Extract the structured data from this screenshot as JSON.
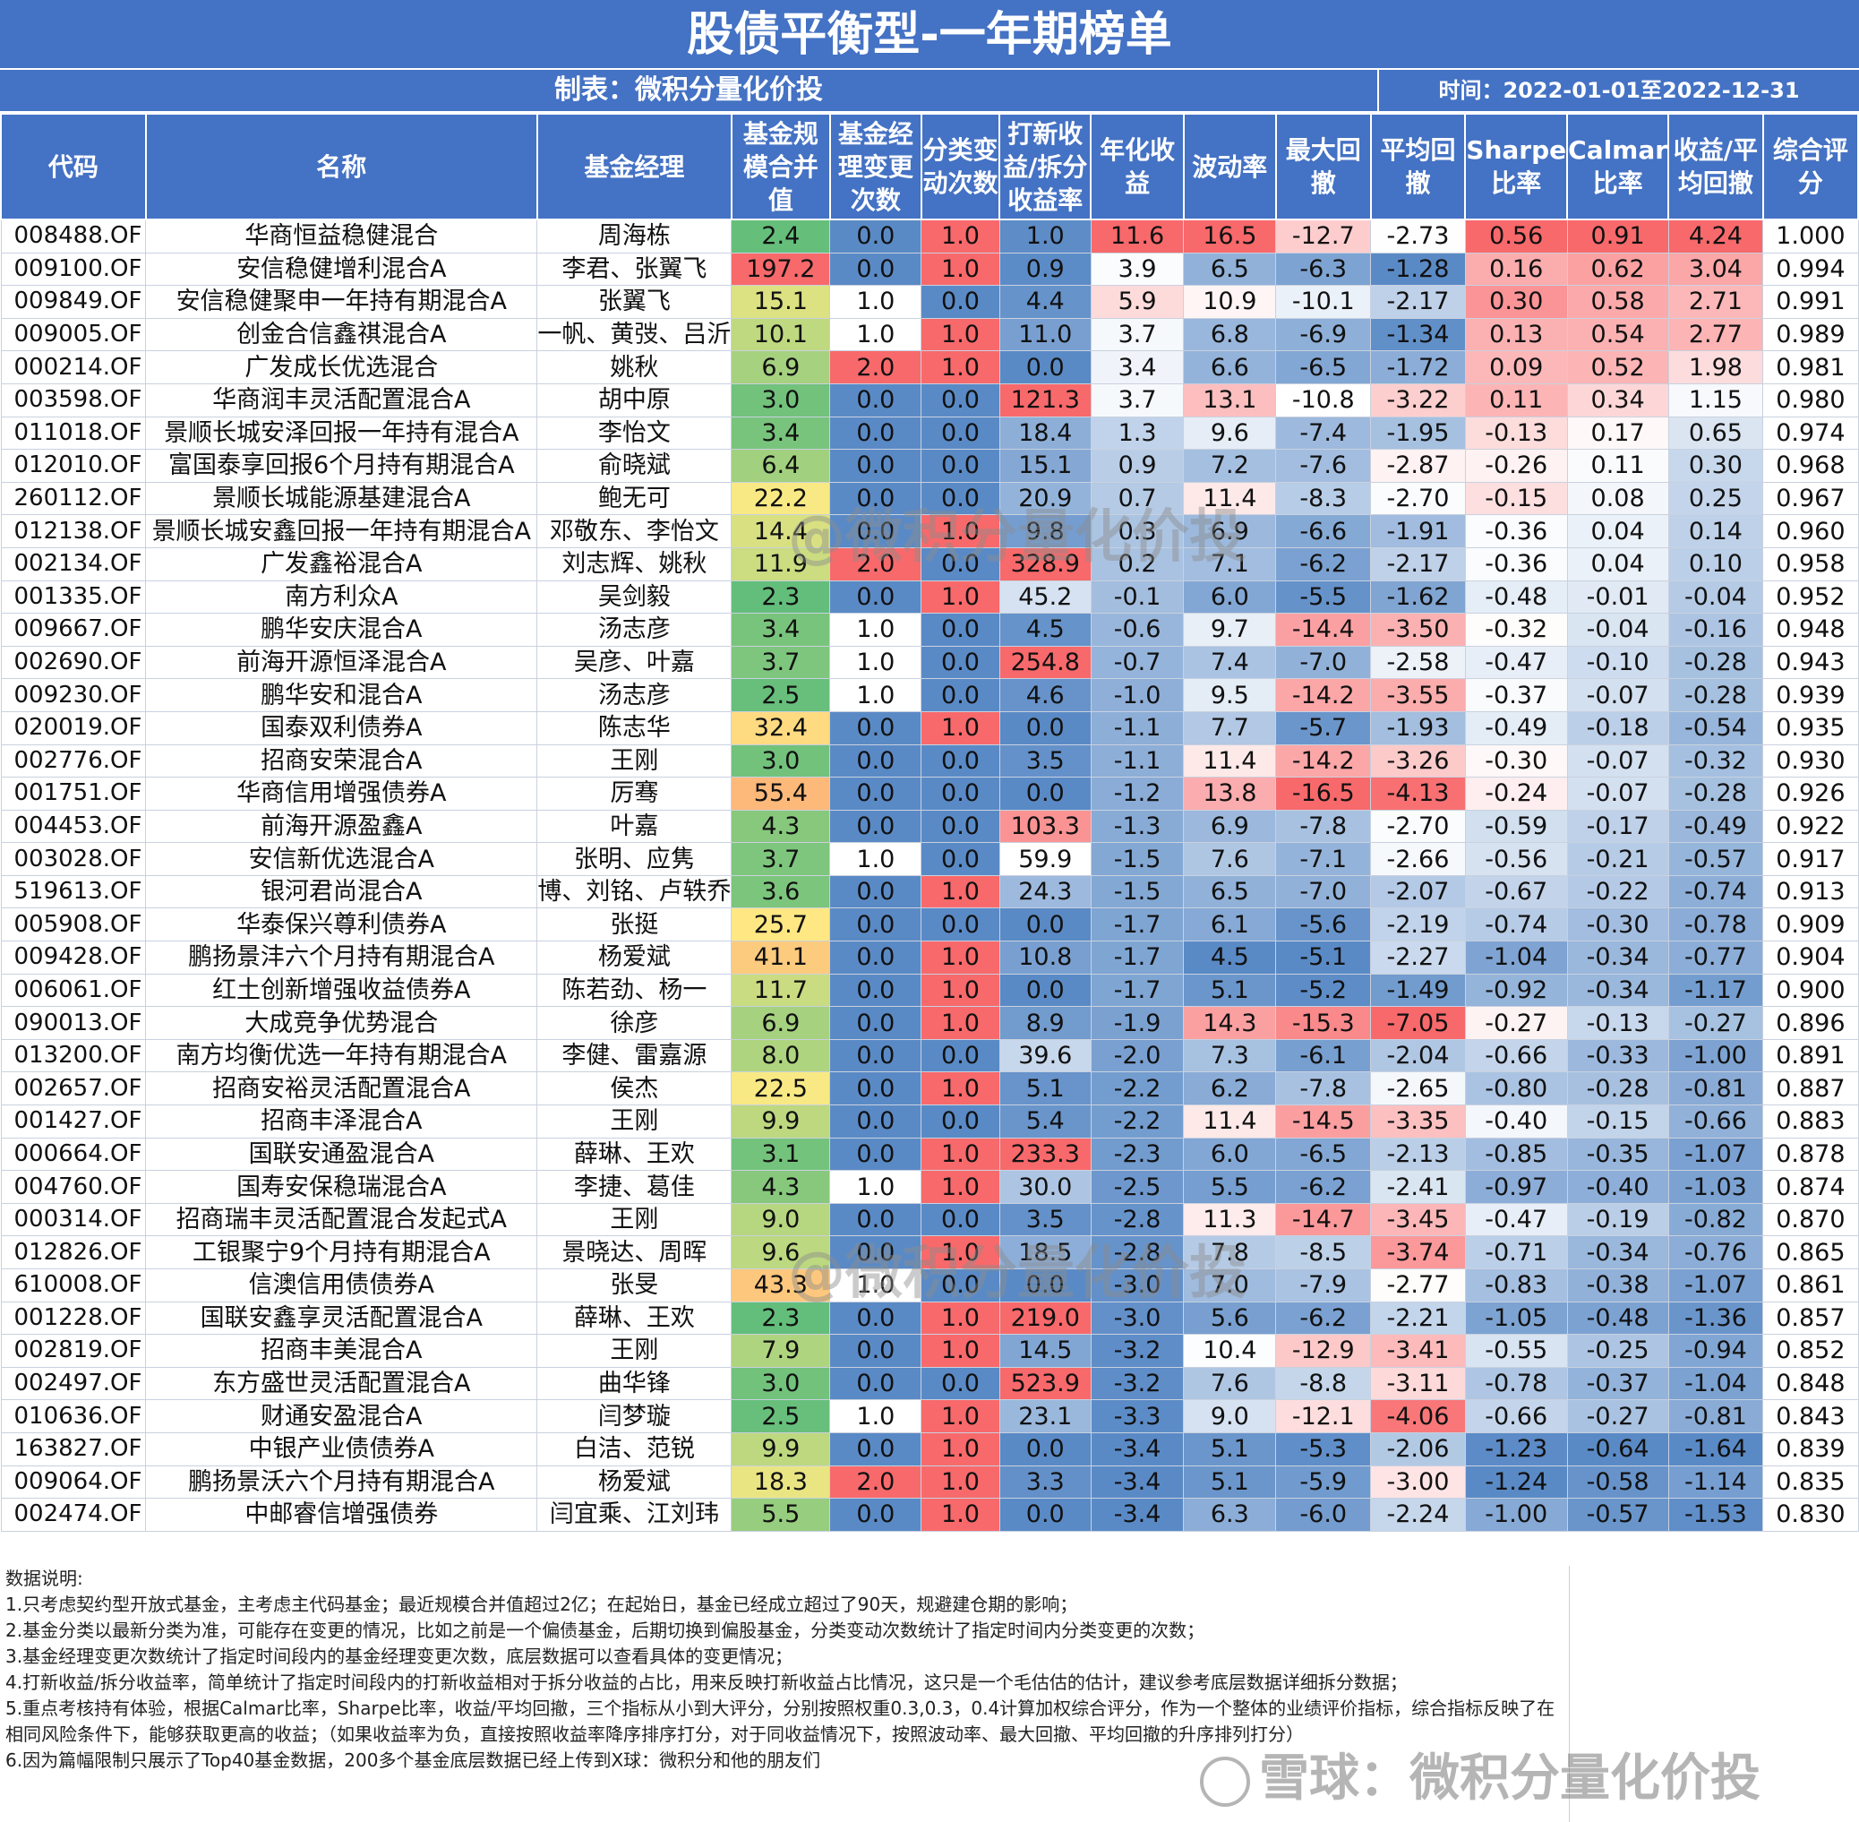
{
  "title": "股债平衡型-一年期榜单",
  "maker": "制表：微积分量化价投",
  "period": "时间：2022-01-01至2022-12-31",
  "columns": [
    "代码",
    "名称",
    "基金经理",
    "基金规模合并值",
    "基金经理变更次数",
    "分类变动次数",
    "打新收益/拆分收益率",
    "年化收益",
    "波动率",
    "最大回撤",
    "平均回撤",
    "Sharpe比率",
    "Calmar比率",
    "收益/平均回撤",
    "综合评分"
  ],
  "rows": [
    [
      "008488.OF",
      "华商恒益稳健混合",
      "周海栋",
      "2.4",
      "0.0",
      "1.0",
      "1.0",
      "11.6",
      "16.5",
      "-12.7",
      "-2.73",
      "0.56",
      "0.91",
      "4.24",
      "1.000"
    ],
    [
      "009100.OF",
      "安信稳健增利混合A",
      "李君、张翼飞",
      "197.2",
      "0.0",
      "1.0",
      "0.9",
      "3.9",
      "6.5",
      "-6.3",
      "-1.28",
      "0.16",
      "0.62",
      "3.04",
      "0.994"
    ],
    [
      "009849.OF",
      "安信稳健聚申一年持有期混合A",
      "张翼飞",
      "15.1",
      "1.0",
      "0.0",
      "4.4",
      "5.9",
      "10.9",
      "-10.1",
      "-2.17",
      "0.30",
      "0.58",
      "2.71",
      "0.991"
    ],
    [
      "009005.OF",
      "创金合信鑫祺混合A",
      "一帆、黄弢、吕沂",
      "10.1",
      "1.0",
      "1.0",
      "11.0",
      "3.7",
      "6.8",
      "-6.9",
      "-1.34",
      "0.13",
      "0.54",
      "2.77",
      "0.989"
    ],
    [
      "000214.OF",
      "广发成长优选混合",
      "姚秋",
      "6.9",
      "2.0",
      "1.0",
      "0.0",
      "3.4",
      "6.6",
      "-6.5",
      "-1.72",
      "0.09",
      "0.52",
      "1.98",
      "0.981"
    ],
    [
      "003598.OF",
      "华商润丰灵活配置混合A",
      "胡中原",
      "3.0",
      "0.0",
      "0.0",
      "121.3",
      "3.7",
      "13.1",
      "-10.8",
      "-3.22",
      "0.11",
      "0.34",
      "1.15",
      "0.980"
    ],
    [
      "011018.OF",
      "景顺长城安泽回报一年持有混合A",
      "李怡文",
      "3.4",
      "0.0",
      "0.0",
      "18.4",
      "1.3",
      "9.6",
      "-7.4",
      "-1.95",
      "-0.13",
      "0.17",
      "0.65",
      "0.974"
    ],
    [
      "012010.OF",
      "富国泰享回报6个月持有期混合A",
      "俞晓斌",
      "6.4",
      "0.0",
      "0.0",
      "15.1",
      "0.9",
      "7.2",
      "-7.6",
      "-2.87",
      "-0.26",
      "0.11",
      "0.30",
      "0.968"
    ],
    [
      "260112.OF",
      "景顺长城能源基建混合A",
      "鲍无可",
      "22.2",
      "0.0",
      "0.0",
      "20.9",
      "0.7",
      "11.4",
      "-8.3",
      "-2.70",
      "-0.15",
      "0.08",
      "0.25",
      "0.967"
    ],
    [
      "012138.OF",
      "景顺长城安鑫回报一年持有期混合A",
      "邓敬东、李怡文",
      "14.4",
      "0.0",
      "1.0",
      "9.8",
      "0.3",
      "6.9",
      "-6.6",
      "-1.91",
      "-0.36",
      "0.04",
      "0.14",
      "0.960"
    ],
    [
      "002134.OF",
      "广发鑫裕混合A",
      "刘志辉、姚秋",
      "11.9",
      "2.0",
      "0.0",
      "328.9",
      "0.2",
      "7.1",
      "-6.2",
      "-2.17",
      "-0.36",
      "0.04",
      "0.10",
      "0.958"
    ],
    [
      "001335.OF",
      "南方利众A",
      "吴剑毅",
      "2.3",
      "0.0",
      "1.0",
      "45.2",
      "-0.1",
      "6.0",
      "-5.5",
      "-1.62",
      "-0.48",
      "-0.01",
      "-0.04",
      "0.952"
    ],
    [
      "009667.OF",
      "鹏华安庆混合A",
      "汤志彦",
      "3.4",
      "1.0",
      "0.0",
      "4.5",
      "-0.6",
      "9.7",
      "-14.4",
      "-3.50",
      "-0.32",
      "-0.04",
      "-0.16",
      "0.948"
    ],
    [
      "002690.OF",
      "前海开源恒泽混合A",
      "吴彦、叶嘉",
      "3.7",
      "1.0",
      "0.0",
      "254.8",
      "-0.7",
      "7.4",
      "-7.0",
      "-2.58",
      "-0.47",
      "-0.10",
      "-0.28",
      "0.943"
    ],
    [
      "009230.OF",
      "鹏华安和混合A",
      "汤志彦",
      "2.5",
      "1.0",
      "0.0",
      "4.6",
      "-1.0",
      "9.5",
      "-14.2",
      "-3.55",
      "-0.37",
      "-0.07",
      "-0.28",
      "0.939"
    ],
    [
      "020019.OF",
      "国泰双利债券A",
      "陈志华",
      "32.4",
      "0.0",
      "1.0",
      "0.0",
      "-1.1",
      "7.7",
      "-5.7",
      "-1.93",
      "-0.49",
      "-0.18",
      "-0.54",
      "0.935"
    ],
    [
      "002776.OF",
      "招商安荣混合A",
      "王刚",
      "3.0",
      "0.0",
      "0.0",
      "3.5",
      "-1.1",
      "11.4",
      "-14.2",
      "-3.26",
      "-0.30",
      "-0.07",
      "-0.32",
      "0.930"
    ],
    [
      "001751.OF",
      "华商信用增强债券A",
      "厉骞",
      "55.4",
      "0.0",
      "0.0",
      "0.0",
      "-1.2",
      "13.8",
      "-16.5",
      "-4.13",
      "-0.24",
      "-0.07",
      "-0.28",
      "0.926"
    ],
    [
      "004453.OF",
      "前海开源盈鑫A",
      "叶嘉",
      "4.3",
      "0.0",
      "0.0",
      "103.3",
      "-1.3",
      "6.9",
      "-7.8",
      "-2.70",
      "-0.59",
      "-0.17",
      "-0.49",
      "0.922"
    ],
    [
      "003028.OF",
      "安信新优选混合A",
      "张明、应隽",
      "3.7",
      "1.0",
      "0.0",
      "59.9",
      "-1.5",
      "7.6",
      "-7.1",
      "-2.66",
      "-0.56",
      "-0.21",
      "-0.57",
      "0.917"
    ],
    [
      "519613.OF",
      "银河君尚混合A",
      "博、刘铭、卢轶乔",
      "3.6",
      "0.0",
      "1.0",
      "24.3",
      "-1.5",
      "6.5",
      "-7.0",
      "-2.07",
      "-0.67",
      "-0.22",
      "-0.74",
      "0.913"
    ],
    [
      "005908.OF",
      "华泰保兴尊利债券A",
      "张挺",
      "25.7",
      "0.0",
      "0.0",
      "0.0",
      "-1.7",
      "6.1",
      "-5.6",
      "-2.19",
      "-0.74",
      "-0.30",
      "-0.78",
      "0.909"
    ],
    [
      "009428.OF",
      "鹏扬景沣六个月持有期混合A",
      "杨爱斌",
      "41.1",
      "0.0",
      "1.0",
      "10.8",
      "-1.7",
      "4.5",
      "-5.1",
      "-2.27",
      "-1.04",
      "-0.34",
      "-0.77",
      "0.904"
    ],
    [
      "006061.OF",
      "红土创新增强收益债券A",
      "陈若劲、杨一",
      "11.7",
      "0.0",
      "1.0",
      "0.0",
      "-1.7",
      "5.1",
      "-5.2",
      "-1.49",
      "-0.92",
      "-0.34",
      "-1.17",
      "0.900"
    ],
    [
      "090013.OF",
      "大成竞争优势混合",
      "徐彦",
      "6.9",
      "0.0",
      "1.0",
      "8.9",
      "-1.9",
      "14.3",
      "-15.3",
      "-7.05",
      "-0.27",
      "-0.13",
      "-0.27",
      "0.896"
    ],
    [
      "013200.OF",
      "南方均衡优选一年持有期混合A",
      "李健、雷嘉源",
      "8.0",
      "0.0",
      "0.0",
      "39.6",
      "-2.0",
      "7.3",
      "-6.1",
      "-2.04",
      "-0.66",
      "-0.33",
      "-1.00",
      "0.891"
    ],
    [
      "002657.OF",
      "招商安裕灵活配置混合A",
      "侯杰",
      "22.5",
      "0.0",
      "1.0",
      "5.1",
      "-2.2",
      "6.2",
      "-7.8",
      "-2.65",
      "-0.80",
      "-0.28",
      "-0.81",
      "0.887"
    ],
    [
      "001427.OF",
      "招商丰泽混合A",
      "王刚",
      "9.9",
      "0.0",
      "0.0",
      "5.4",
      "-2.2",
      "11.4",
      "-14.5",
      "-3.35",
      "-0.40",
      "-0.15",
      "-0.66",
      "0.883"
    ],
    [
      "000664.OF",
      "国联安通盈混合A",
      "薛琳、王欢",
      "3.1",
      "0.0",
      "1.0",
      "233.3",
      "-2.3",
      "6.0",
      "-6.5",
      "-2.13",
      "-0.85",
      "-0.35",
      "-1.07",
      "0.878"
    ],
    [
      "004760.OF",
      "国寿安保稳瑞混合A",
      "李捷、葛佳",
      "4.3",
      "1.0",
      "1.0",
      "30.0",
      "-2.5",
      "5.5",
      "-6.2",
      "-2.41",
      "-0.97",
      "-0.40",
      "-1.03",
      "0.874"
    ],
    [
      "000314.OF",
      "招商瑞丰灵活配置混合发起式A",
      "王刚",
      "9.0",
      "0.0",
      "0.0",
      "3.5",
      "-2.8",
      "11.3",
      "-14.7",
      "-3.45",
      "-0.47",
      "-0.19",
      "-0.82",
      "0.870"
    ],
    [
      "012826.OF",
      "工银聚宁9个月持有期混合A",
      "景晓达、周晖",
      "9.6",
      "0.0",
      "1.0",
      "18.5",
      "-2.8",
      "7.8",
      "-8.5",
      "-3.74",
      "-0.71",
      "-0.34",
      "-0.76",
      "0.865"
    ],
    [
      "610008.OF",
      "信澳信用债债券A",
      "张旻",
      "43.3",
      "1.0",
      "0.0",
      "0.0",
      "-3.0",
      "7.0",
      "-7.9",
      "-2.77",
      "-0.83",
      "-0.38",
      "-1.07",
      "0.861"
    ],
    [
      "001228.OF",
      "国联安鑫享灵活配置混合A",
      "薛琳、王欢",
      "2.3",
      "0.0",
      "1.0",
      "219.0",
      "-3.0",
      "5.6",
      "-6.2",
      "-2.21",
      "-1.05",
      "-0.48",
      "-1.36",
      "0.857"
    ],
    [
      "002819.OF",
      "招商丰美混合A",
      "王刚",
      "7.9",
      "0.0",
      "1.0",
      "14.5",
      "-3.2",
      "10.4",
      "-12.9",
      "-3.41",
      "-0.55",
      "-0.25",
      "-0.94",
      "0.852"
    ],
    [
      "002497.OF",
      "东方盛世灵活配置混合A",
      "曲华锋",
      "3.0",
      "0.0",
      "0.0",
      "523.9",
      "-3.2",
      "7.6",
      "-8.8",
      "-3.11",
      "-0.78",
      "-0.37",
      "-1.04",
      "0.848"
    ],
    [
      "010636.OF",
      "财通安盈混合A",
      "闫梦璇",
      "2.5",
      "1.0",
      "1.0",
      "23.1",
      "-3.3",
      "9.0",
      "-12.1",
      "-4.06",
      "-0.66",
      "-0.27",
      "-0.81",
      "0.843"
    ],
    [
      "163827.OF",
      "中银产业债债券A",
      "白洁、范锐",
      "9.9",
      "0.0",
      "1.0",
      "0.0",
      "-3.4",
      "5.1",
      "-5.3",
      "-2.06",
      "-1.23",
      "-0.64",
      "-1.64",
      "0.839"
    ],
    [
      "009064.OF",
      "鹏扬景沃六个月持有期混合A",
      "杨爱斌",
      "18.3",
      "2.0",
      "1.0",
      "3.3",
      "-3.4",
      "5.1",
      "-5.9",
      "-3.00",
      "-1.24",
      "-0.58",
      "-1.14",
      "0.835"
    ],
    [
      "002474.OF",
      "中邮睿信增强债券",
      "闫宜乘、江刘玮",
      "5.5",
      "0.0",
      "1.0",
      "0.0",
      "-3.4",
      "6.3",
      "-6.0",
      "-2.24",
      "-1.00",
      "-0.57",
      "-1.53",
      "0.830"
    ]
  ],
  "notes": [
    "数据说明:",
    "1.只考虑契约型开放式基金，主考虑主代码基金；最近规模合并值超过2亿；在起始日，基金已经成立超过了90天，规避建仓期的影响；",
    "2.基金分类以最新分类为准，可能存在变更的情况，比如之前是一个偏债基金，后期切换到偏股基金，分类变动次数统计了指定时间内分类变更的次数；",
    "3.基金经理变更次数统计了指定时间段内的基金经理变更次数，底层数据可以查看具体的变更情况；",
    "4.打新收益/拆分收益率，简单统计了指定时间段内的打新收益相对于拆分收益的占比，用来反映打新收益占比情况，这只是一个毛估估的估计，建议参考底层数据详细拆分数据；",
    "5.重点考核持有体验，根据Calmar比率，Sharpe比率，收益/平均回撤，三个指标从小到大评分，分别按照权重0.3,0.3，0.4计算加权综合评分，作为一个整体的业绩评价指标，综合指标反映了在相同风险条件下，能够获取更高的收益；（如果收益率为负，直接按照收益率降序排序打分，对于同收益情况下，按照波动率、最大回撤、平均回撤的升序排列打分）",
    "6.因为篇幅限制只展示了Top40基金数据，200多个基金底层数据已经上传到X球：微积分和他的朋友们"
  ],
  "watermark": "@微积分量化价投",
  "watermark_bottom": "雪球：微积分量化价投",
  "colors": {
    "header": "#4472c4",
    "red": "#f8696b",
    "white": "#ffffff",
    "blue": "#5a8ac6",
    "yellow": "#ffeb84",
    "green": "#63be7b"
  }
}
